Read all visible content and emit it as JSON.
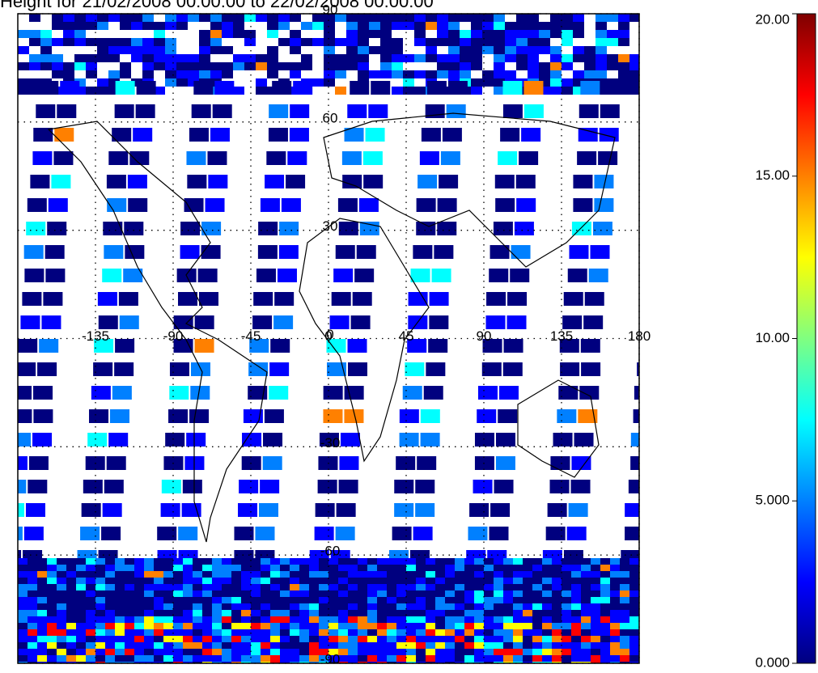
{
  "chart_data": {
    "type": "map",
    "title": "Height for 21/02/2008 00:00:00 to 22/02/2008 00:00:00",
    "xlim": [
      -180,
      180
    ],
    "ylim": [
      -90,
      90
    ],
    "xticks": [
      -135,
      -90,
      -45,
      0,
      45,
      90,
      135,
      180
    ],
    "yticks": [
      -90,
      -60,
      -30,
      0,
      30,
      60,
      90
    ],
    "grid": true,
    "colorbar": {
      "lim": [
        0,
        20
      ],
      "ticks": [
        {
          "value": 0,
          "label": "0.000"
        },
        {
          "value": 5,
          "label": "5.000"
        },
        {
          "value": 10,
          "label": "10.00"
        },
        {
          "value": 15,
          "label": "15.00"
        },
        {
          "value": 20,
          "label": "20.00"
        }
      ],
      "colors": [
        "#00007f",
        "#0000ff",
        "#0080ff",
        "#00ffff",
        "#80ff80",
        "#ffff00",
        "#ff8000",
        "#ff0000",
        "#7f0000"
      ]
    }
  }
}
